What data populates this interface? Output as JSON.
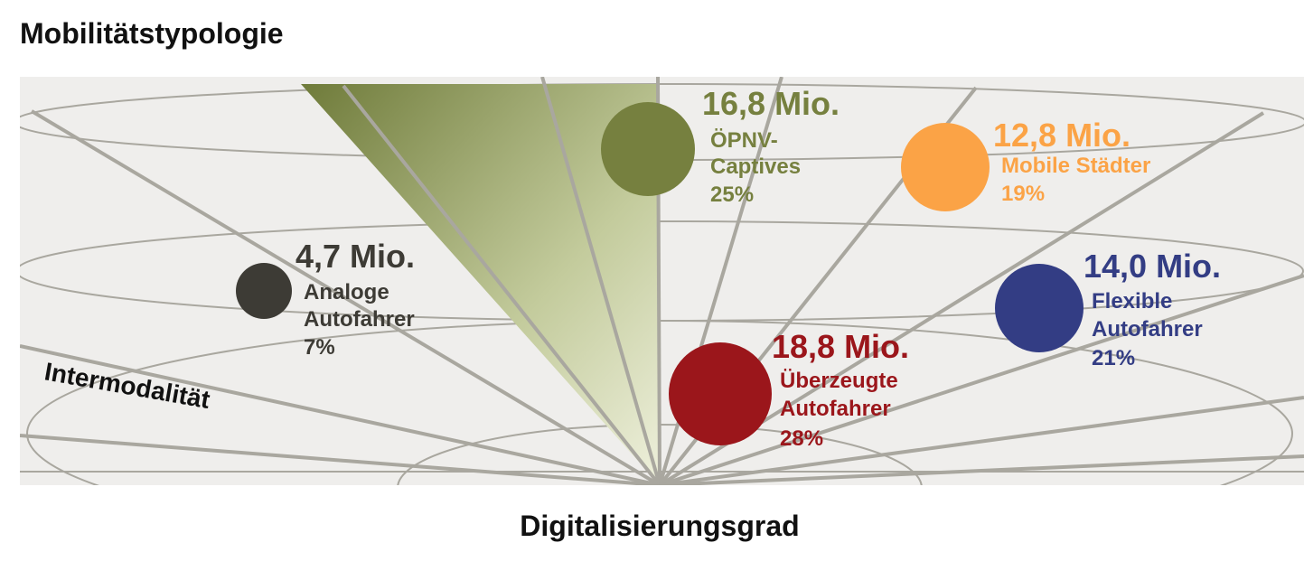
{
  "title": "Mobilitätstypologie",
  "x_axis_label": "Digitalisierungsgrad",
  "side_label": "Intermodalität",
  "segments": [
    {
      "amount": "4,7 Mio.",
      "lines": [
        "Analoge",
        "Autofahrer"
      ],
      "percent": "7%",
      "color": "#3d3b35"
    },
    {
      "amount": "16,8 Mio.",
      "lines": [
        "ÖPNV-",
        "Captives"
      ],
      "percent": "25%",
      "color": "#76803f"
    },
    {
      "amount": "12,8 Mio.",
      "lines": [
        "Mobile Städter"
      ],
      "percent": "19%",
      "color": "#fba346"
    },
    {
      "amount": "14,0 Mio.",
      "lines": [
        "Flexible",
        "Autofahrer"
      ],
      "percent": "21%",
      "color": "#333d84"
    },
    {
      "amount": "18,8 Mio.",
      "lines": [
        "Überzeugte",
        "Autofahrer"
      ],
      "percent": "28%",
      "color": "#9b161b"
    }
  ]
}
